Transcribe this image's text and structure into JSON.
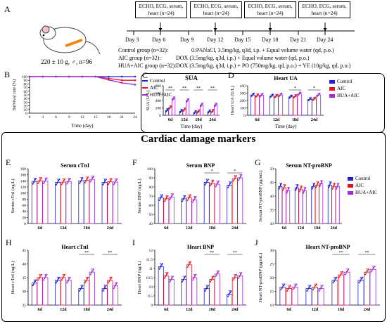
{
  "panel_labels": {
    "A": "A",
    "B": "B",
    "C": "C",
    "D": "D",
    "E": "E",
    "F": "F",
    "G": "G",
    "H": "H",
    "I": "I",
    "J": "J"
  },
  "protocol": {
    "echo_boxes": [
      "ECHO, ECG, serum, heart  (n=24)",
      "ECHO, ECG, serum, heart  (n=24)",
      "ECHO, ECG, serum, heart  (n=24)",
      "ECHO, ECG, serum, heart  (n=24)"
    ],
    "days": [
      "Day 3",
      "Day 6",
      "Day 9",
      "Day 12",
      "Day 15",
      "Day 18",
      "Day 21",
      "Day 24"
    ],
    "mouse_label": "220 ± 10 g, ♂,  n=96",
    "groups": [
      {
        "name": "Control group (n=32):",
        "treatment": "0.9%NaCl, 3.5mg/kg, q3d, i.p. + Equal volume water (qd, p.o.)"
      },
      {
        "name": "AIC group (n=32):",
        "treatment": "DOX (3.5mg/kg, q3d, i.p.) + Equal volume water (qd, p.o.)"
      },
      {
        "name": "HUA+AIC group (n=32):",
        "treatment": "DOX (3.5mg/kg, q3d, i.p.) + PO (750mg/kg, qd, p.o.) + YE (10g/kg, qd, p.o.)"
      }
    ]
  },
  "section_title": "Cardiac damage markers",
  "colors": {
    "Control": "#1f1fd9",
    "AIC": "#e8141c",
    "HUA+AIC": "#9b2ad6"
  },
  "chart_data": [
    {
      "id": "B",
      "type": "line",
      "xlabel": "Time (day)",
      "ylabel": "Survival rate (%)",
      "xlim": [
        0,
        24
      ],
      "ylim": [
        0,
        100
      ],
      "xticks": [
        0,
        3,
        6,
        9,
        12,
        15,
        18,
        21,
        24
      ],
      "yticks": [
        0,
        10,
        20,
        30,
        40,
        50,
        60,
        70,
        80,
        90,
        100
      ],
      "legend": [
        "Control",
        "AIC",
        "HUA+AIC"
      ],
      "series": [
        {
          "name": "Control",
          "x": [
            0,
            3,
            6,
            9,
            12,
            15,
            18,
            21,
            24
          ],
          "y": [
            100,
            100,
            100,
            100,
            100,
            100,
            100,
            100,
            100
          ]
        },
        {
          "name": "AIC",
          "x": [
            0,
            3,
            6,
            9,
            12,
            15,
            18,
            21,
            24
          ],
          "y": [
            100,
            100,
            100,
            100,
            100,
            100,
            95,
            90,
            90
          ]
        },
        {
          "name": "HUA+AIC",
          "x": [
            0,
            3,
            6,
            9,
            12,
            15,
            18,
            21,
            24
          ],
          "y": [
            100,
            100,
            100,
            100,
            100,
            100,
            91,
            83,
            78
          ]
        }
      ]
    },
    {
      "id": "C",
      "type": "bar",
      "title": "SUA",
      "xlabel": "Time (day)",
      "ylabel": "SUA (U/L)",
      "categories": [
        "6d",
        "12d",
        "18d",
        "24d"
      ],
      "ylim": [
        0,
        800
      ],
      "yticks": [
        0,
        200,
        400,
        600,
        800
      ],
      "series": [
        {
          "name": "Control",
          "values": [
            130,
            110,
            80,
            100
          ]
        },
        {
          "name": "AIC",
          "values": [
            210,
            150,
            100,
            110
          ]
        },
        {
          "name": "HUA+AIC",
          "values": [
            450,
            400,
            280,
            280
          ]
        }
      ],
      "sig": "**"
    },
    {
      "id": "D",
      "type": "bar",
      "title": "Heart UA",
      "xlabel": "Time (day)",
      "ylabel": "Heart UA (U/L)",
      "categories": [
        "6d",
        "12d",
        "18d",
        "24d"
      ],
      "ylim": [
        0,
        400
      ],
      "yticks": [
        0,
        100,
        200,
        300,
        400
      ],
      "legend": [
        "Control",
        "AIC",
        "HUA+AIC"
      ],
      "series": [
        {
          "name": "Control",
          "values": [
            275,
            262,
            250,
            215
          ]
        },
        {
          "name": "AIC",
          "values": [
            265,
            258,
            255,
            220
          ]
        },
        {
          "name": "HUA+AIC",
          "values": [
            272,
            275,
            290,
            275
          ]
        }
      ],
      "sig": "*"
    },
    {
      "id": "E",
      "type": "bar",
      "title": "Serum cTnI",
      "ylabel": "Serum cTnI (ng/L)",
      "categories": [
        "6d",
        "12d",
        "18d",
        "24d"
      ],
      "ylim": [
        0,
        180
      ],
      "yticks": [
        0,
        20,
        40,
        60,
        80,
        100,
        120,
        140,
        160,
        180
      ],
      "series": [
        {
          "name": "Control",
          "values": [
            138,
            135,
            140,
            135
          ]
        },
        {
          "name": "AIC",
          "values": [
            140,
            136,
            142,
            137
          ]
        },
        {
          "name": "HUA+AIC",
          "values": [
            139,
            138,
            145,
            136
          ]
        }
      ]
    },
    {
      "id": "F",
      "type": "bar",
      "title": "Serum BNP",
      "ylabel": "Serum BNP (ng/L)",
      "categories": [
        "6d",
        "12d",
        "18d",
        "24d"
      ],
      "ylim": [
        40,
        100
      ],
      "yticks": [
        40,
        50,
        60,
        70,
        80,
        90,
        100
      ],
      "series": [
        {
          "name": "Control",
          "values": [
            68,
            67,
            85,
            82
          ]
        },
        {
          "name": "AIC",
          "values": [
            67,
            68,
            84,
            89
          ]
        },
        {
          "name": "HUA+AIC",
          "values": [
            69,
            66,
            83,
            90
          ]
        }
      ],
      "sig": "*"
    },
    {
      "id": "G",
      "type": "bar",
      "title": "Serum NT-proBNP",
      "ylabel": "Serum NT-proBNP (pg/mL)",
      "categories": [
        "6d",
        "12d",
        "18d",
        "24d"
      ],
      "ylim": [
        30,
        50
      ],
      "yticks": [
        30,
        35,
        40,
        45,
        50
      ],
      "legend": [
        "Control",
        "AIC",
        "HUA+AIC"
      ],
      "series": [
        {
          "name": "Control",
          "values": [
            43.5,
            43,
            43.5,
            44
          ]
        },
        {
          "name": "AIC",
          "values": [
            43,
            42.5,
            44,
            43.5
          ]
        },
        {
          "name": "HUA+AIC",
          "values": [
            42,
            42,
            44.5,
            43.5
          ]
        }
      ]
    },
    {
      "id": "H",
      "type": "bar",
      "title": "Heart cTnI",
      "ylabel": "Heart cTnI (ng/L)",
      "categories": [
        "6d",
        "12d",
        "18d",
        "24d"
      ],
      "ylim": [
        25,
        45
      ],
      "yticks": [
        25,
        30,
        35,
        40,
        45
      ],
      "series": [
        {
          "name": "Control",
          "values": [
            33,
            34,
            31,
            31
          ]
        },
        {
          "name": "AIC",
          "values": [
            35,
            35,
            34,
            34
          ]
        },
        {
          "name": "HUA+AIC",
          "values": [
            35,
            34,
            37,
            32
          ]
        }
      ],
      "sig": "**"
    },
    {
      "id": "I",
      "type": "bar",
      "title": "Heart BNP",
      "ylabel": "Heart BNP (ng/L)",
      "categories": [
        "6d",
        "12d",
        "18d",
        "24d"
      ],
      "ylim": [
        9,
        12
      ],
      "yticks": [
        9,
        9.5,
        10,
        10.5,
        11,
        11.5,
        12
      ],
      "series": [
        {
          "name": "Control",
          "values": [
            11.1,
            10.4,
            9.9,
            9.6
          ]
        },
        {
          "name": "AIC",
          "values": [
            10.6,
            11.2,
            10.4,
            10.5
          ]
        },
        {
          "name": "HUA+AIC",
          "values": [
            10.4,
            10.5,
            10.7,
            10.6
          ]
        }
      ],
      "sig": "**"
    },
    {
      "id": "J",
      "type": "bar",
      "title": "Heart NT-proBNP",
      "ylabel": "Heart NT-proBNP (pg/mL)",
      "categories": [
        "6d",
        "12d",
        "18d",
        "24d"
      ],
      "ylim": [
        10,
        30
      ],
      "yticks": [
        10,
        15,
        20,
        25,
        30
      ],
      "series": [
        {
          "name": "Control",
          "values": [
            16.5,
            16,
            19,
            19
          ]
        },
        {
          "name": "AIC",
          "values": [
            16,
            16.5,
            21,
            22
          ]
        },
        {
          "name": "HUA+AIC",
          "values": [
            16.5,
            16,
            22,
            23
          ]
        }
      ],
      "sig": "**"
    }
  ]
}
